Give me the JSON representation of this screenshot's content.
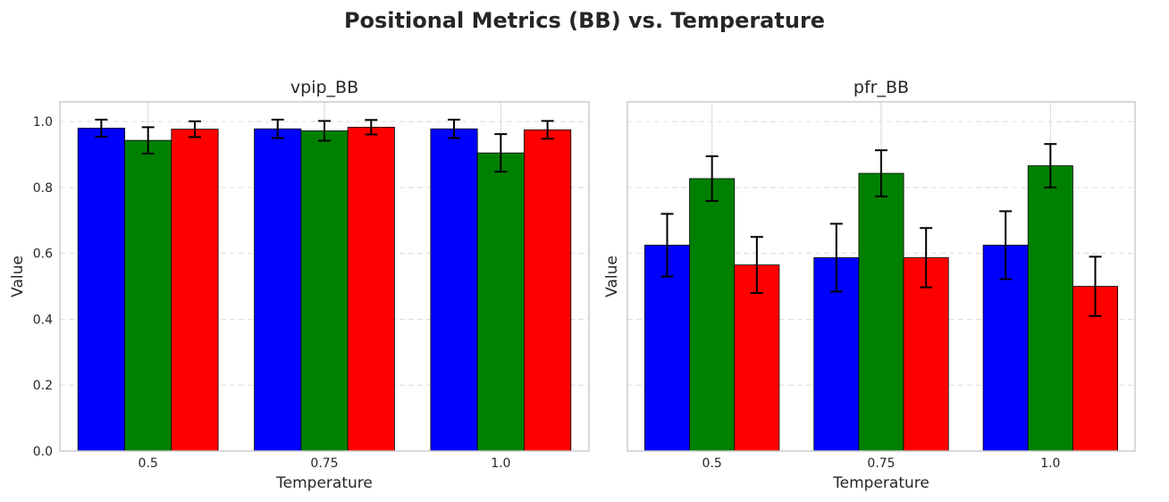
{
  "title": "Positional Metrics (BB) vs. Temperature",
  "colors": {
    "series": [
      "#0000ff",
      "#008000",
      "#ff0000"
    ]
  },
  "chart_data": [
    {
      "type": "bar",
      "title": "vpip_BB",
      "xlabel": "Temperature",
      "ylabel": "Value",
      "categories": [
        "0.5",
        "0.75",
        "1.0"
      ],
      "ylim": [
        0,
        1.06
      ],
      "yticks": [
        "0.0",
        "0.2",
        "0.4",
        "0.6",
        "0.8",
        "1.0"
      ],
      "show_ytick_labels": true,
      "grid": true,
      "series": [
        {
          "color": "#0000ff",
          "values": [
            0.98,
            0.978,
            0.978
          ],
          "errors": [
            0.026,
            0.028,
            0.028
          ]
        },
        {
          "color": "#008000",
          "values": [
            0.943,
            0.972,
            0.905
          ],
          "errors": [
            0.04,
            0.03,
            0.057
          ]
        },
        {
          "color": "#ff0000",
          "values": [
            0.977,
            0.983,
            0.975
          ],
          "errors": [
            0.024,
            0.022,
            0.027
          ]
        }
      ]
    },
    {
      "type": "bar",
      "title": "pfr_BB",
      "xlabel": "Temperature",
      "ylabel": "Value",
      "categories": [
        "0.5",
        "0.75",
        "1.0"
      ],
      "ylim": [
        0,
        1.06
      ],
      "yticks": [
        "0.0",
        "0.2",
        "0.4",
        "0.6",
        "0.8",
        "1.0"
      ],
      "show_ytick_labels": false,
      "grid": true,
      "series": [
        {
          "color": "#0000ff",
          "values": [
            0.625,
            0.587,
            0.625
          ],
          "errors": [
            0.095,
            0.103,
            0.103
          ]
        },
        {
          "color": "#008000",
          "values": [
            0.827,
            0.843,
            0.866
          ],
          "errors": [
            0.068,
            0.07,
            0.066
          ]
        },
        {
          "color": "#ff0000",
          "values": [
            0.565,
            0.587,
            0.5
          ],
          "errors": [
            0.085,
            0.09,
            0.09
          ]
        }
      ]
    }
  ]
}
